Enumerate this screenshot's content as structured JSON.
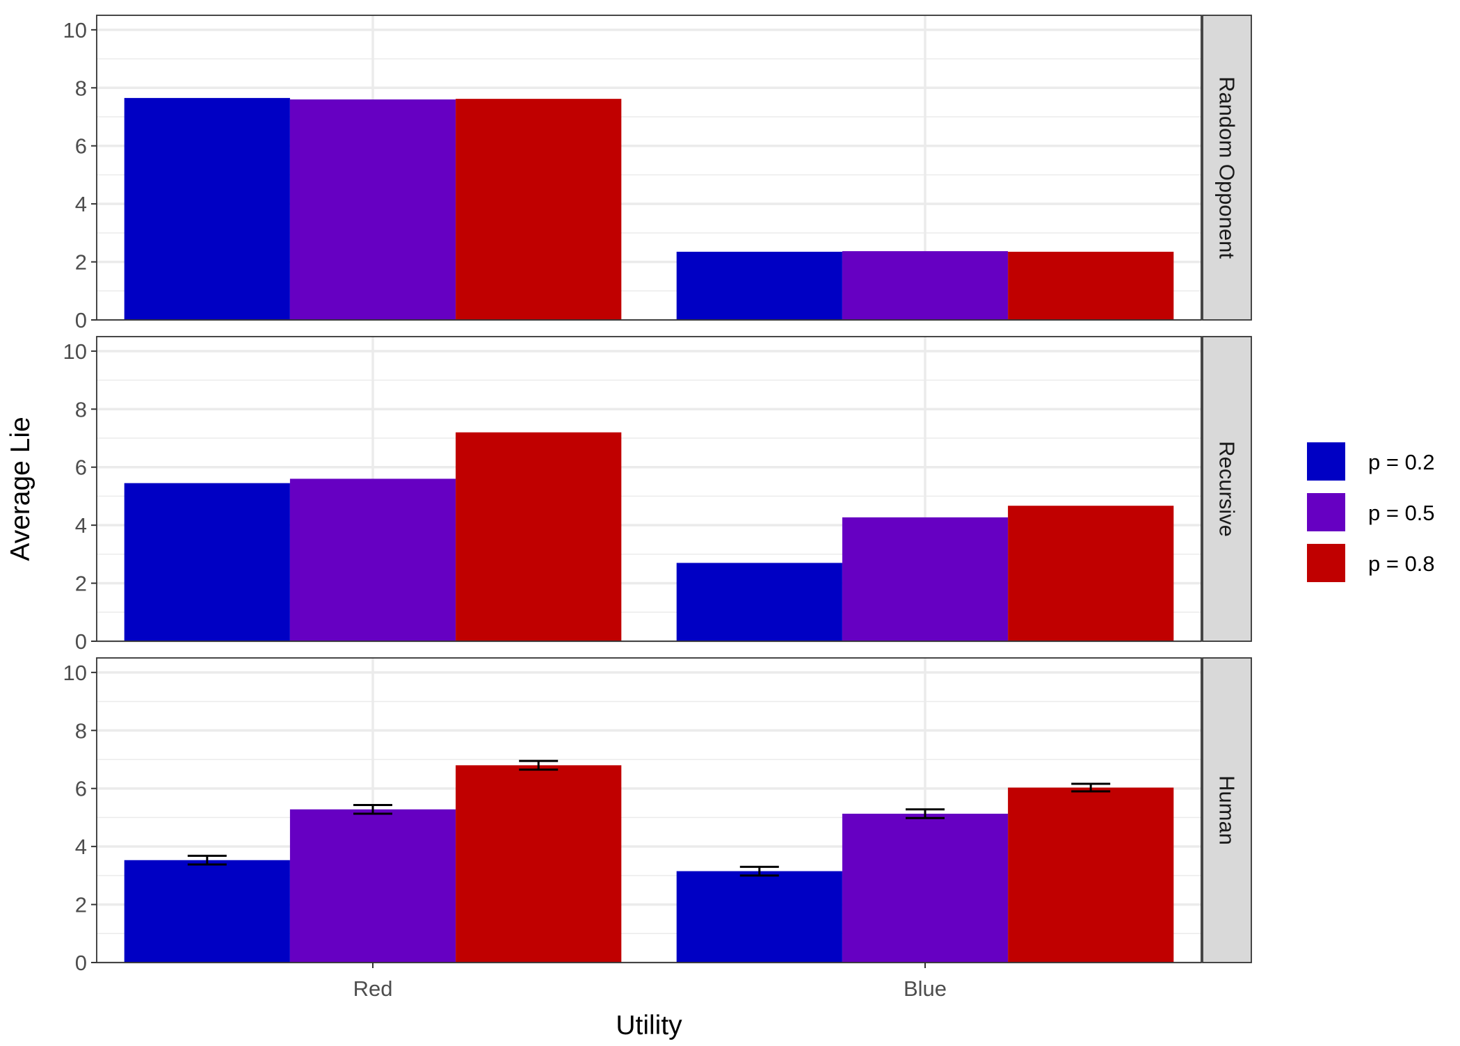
{
  "chart_data": {
    "type": "bar",
    "xlabel": "Utility",
    "ylabel": "Average Lie",
    "categories": [
      "Red",
      "Blue"
    ],
    "ylim": [
      0,
      10.5
    ],
    "yticks": [
      0,
      2,
      4,
      6,
      8,
      10
    ],
    "grid": true,
    "legend_position": "right",
    "legend": [
      {
        "label": "p = 0.2",
        "color": "#0000c4"
      },
      {
        "label": "p = 0.5",
        "color": "#6600c2"
      },
      {
        "label": "p = 0.8",
        "color": "#c00000"
      }
    ],
    "panels": [
      {
        "strip_label": "Random Opponent",
        "series": [
          {
            "name": "p = 0.2",
            "values": [
              7.65,
              2.35
            ]
          },
          {
            "name": "p = 0.5",
            "values": [
              7.6,
              2.37
            ]
          },
          {
            "name": "p = 0.8",
            "values": [
              7.62,
              2.35
            ]
          }
        ]
      },
      {
        "strip_label": "Recursive",
        "series": [
          {
            "name": "p = 0.2",
            "values": [
              5.45,
              2.7
            ]
          },
          {
            "name": "p = 0.5",
            "values": [
              5.6,
              4.27
            ]
          },
          {
            "name": "p = 0.8",
            "values": [
              7.2,
              4.67
            ]
          }
        ]
      },
      {
        "strip_label": "Human",
        "series": [
          {
            "name": "p = 0.2",
            "values": [
              3.53,
              3.15
            ],
            "error": [
              0.15,
              0.15
            ]
          },
          {
            "name": "p = 0.5",
            "values": [
              5.28,
              5.13
            ],
            "error": [
              0.15,
              0.15
            ]
          },
          {
            "name": "p = 0.8",
            "values": [
              6.8,
              6.03
            ],
            "error": [
              0.15,
              0.13
            ]
          }
        ]
      }
    ]
  }
}
